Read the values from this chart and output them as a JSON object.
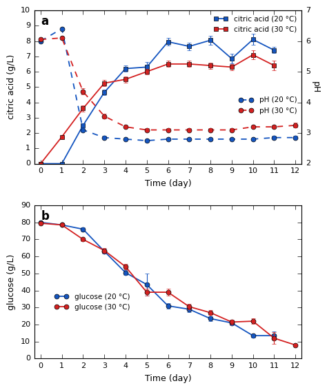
{
  "time_ca20": [
    0,
    1,
    2,
    3,
    4,
    5,
    6,
    7,
    8,
    9,
    10,
    11
  ],
  "time_ca30": [
    0,
    1,
    2,
    3,
    4,
    5,
    6,
    7,
    8,
    9,
    10,
    11
  ],
  "time_ph": [
    0,
    1,
    2,
    3,
    4,
    5,
    6,
    7,
    8,
    9,
    10,
    11,
    12
  ],
  "time_glu": [
    0,
    1,
    2,
    3,
    4,
    5,
    6,
    7,
    8,
    9,
    10,
    11,
    12
  ],
  "citric_acid_20": [
    0.0,
    0.0,
    2.5,
    4.65,
    6.2,
    6.3,
    7.95,
    7.65,
    8.05,
    6.85,
    8.1,
    7.4
  ],
  "citric_acid_20_err": [
    0.0,
    0.0,
    0.15,
    0.2,
    0.2,
    0.35,
    0.25,
    0.25,
    0.3,
    0.3,
    0.35,
    0.2
  ],
  "citric_acid_30": [
    0.0,
    1.75,
    3.6,
    5.25,
    5.5,
    6.0,
    6.5,
    6.5,
    6.4,
    6.3,
    7.1,
    6.4
  ],
  "citric_acid_30_err": [
    0.0,
    0.05,
    0.2,
    0.2,
    0.2,
    0.2,
    0.2,
    0.2,
    0.2,
    0.2,
    0.3,
    0.3
  ],
  "ph_20": [
    6.0,
    6.4,
    3.1,
    2.85,
    2.8,
    2.75,
    2.8,
    2.8,
    2.8,
    2.8,
    2.8,
    2.85,
    2.85
  ],
  "ph_20_err": [
    0.0,
    0.0,
    0.05,
    0.05,
    0.05,
    0.05,
    0.05,
    0.05,
    0.05,
    0.05,
    0.05,
    0.05,
    0.05
  ],
  "ph_30": [
    6.05,
    6.1,
    4.35,
    3.55,
    3.2,
    3.1,
    3.1,
    3.1,
    3.1,
    3.1,
    3.2,
    3.2,
    3.25
  ],
  "ph_30_err": [
    0.0,
    0.0,
    0.1,
    0.08,
    0.05,
    0.05,
    0.05,
    0.05,
    0.05,
    0.05,
    0.05,
    0.05,
    0.08
  ],
  "glucose_20": [
    80.0,
    78.5,
    76.0,
    63.0,
    50.5,
    43.5,
    31.0,
    29.0,
    23.5,
    21.0,
    13.5,
    13.5,
    null
  ],
  "glucose_20_err": [
    0.5,
    0.5,
    1.0,
    1.5,
    1.5,
    6.5,
    1.5,
    1.5,
    1.5,
    1.5,
    1.0,
    2.5,
    null
  ],
  "glucose_30": [
    79.5,
    78.5,
    70.0,
    63.5,
    54.0,
    39.0,
    39.0,
    30.5,
    27.0,
    21.5,
    22.0,
    12.0,
    8.0
  ],
  "glucose_30_err": [
    0.5,
    0.5,
    1.0,
    1.5,
    1.5,
    2.0,
    2.0,
    1.5,
    1.5,
    1.5,
    1.5,
    3.5,
    0.5
  ],
  "color_blue": "#1455c0",
  "color_red": "#d42020"
}
